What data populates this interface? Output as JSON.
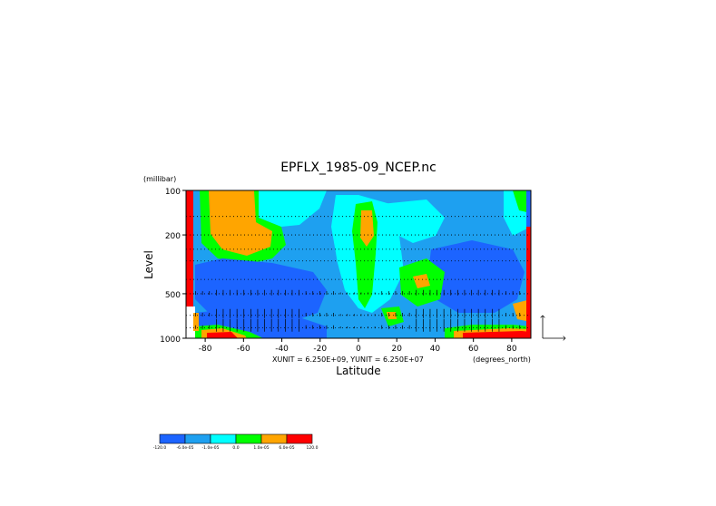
{
  "chart_data": {
    "type": "heatmap",
    "title": "EPFLX_1985-09_NCEP.nc",
    "xlabel": "Latitude",
    "xunit_label": "(degrees_north)",
    "ylabel": "Level",
    "yunit_label": "(millibar)",
    "vector_scale_text": "XUNIT = 6.250E+09, YUNIT = 6.250E+07",
    "x_ticks": [
      "-80",
      "-60",
      "-40",
      "-20",
      "0",
      "20",
      "40",
      "60",
      "80"
    ],
    "x_tick_values": [
      -80,
      -60,
      -40,
      -20,
      0,
      20,
      40,
      60,
      80
    ],
    "xlim": [
      -90,
      90
    ],
    "y_ticks": [
      "100",
      "200",
      "500",
      "1000"
    ],
    "y_tick_values": [
      100,
      200,
      500,
      1000
    ],
    "ylim": [
      1000,
      100
    ],
    "y_scale": "log",
    "levels": [
      1000,
      850,
      700,
      500,
      400,
      300,
      250,
      200,
      150,
      100
    ],
    "colorbar": {
      "colors": [
        "#1c64ff",
        "#1ea0f0",
        "#00ffff",
        "#00ff00",
        "#ffa500",
        "#ff0000"
      ],
      "labels": [
        "-120.0",
        "-6.0e-05",
        "-1.0e-05",
        "0.0",
        "1.0e-05",
        "6.0e-05",
        "120.0"
      ]
    },
    "field_description": "Divergence of EP flux, color-filled contours with EP-flux vectors overlaid",
    "grid": true
  }
}
